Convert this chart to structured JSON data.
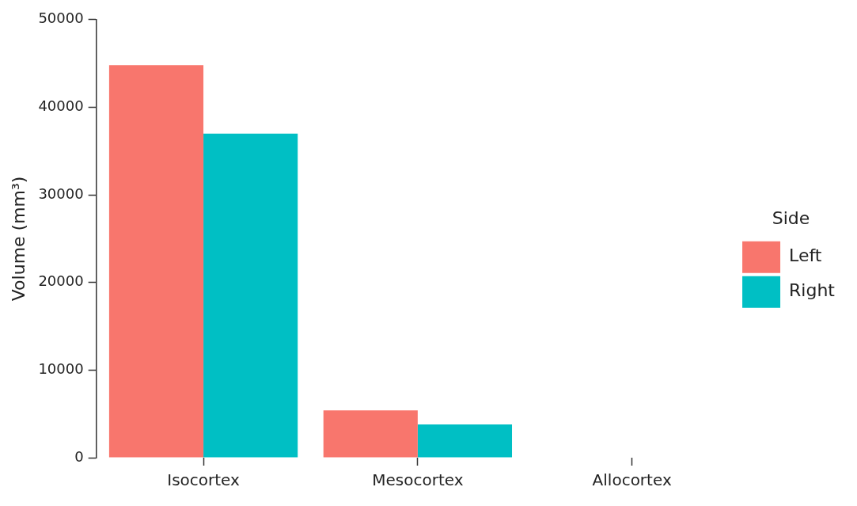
{
  "chart_data": {
    "type": "bar",
    "ylabel": "Volume (mm³)",
    "legend_title": "Side",
    "categories": [
      "Isocortex",
      "Mesocortex",
      "Allocortex"
    ],
    "series": [
      {
        "name": "Left",
        "color": "#f8766d",
        "values": [
          44800,
          5400,
          0
        ]
      },
      {
        "name": "Right",
        "color": "#00bfc4",
        "values": [
          37000,
          3800,
          0
        ]
      }
    ],
    "ylim": [
      0,
      50000
    ],
    "yticks": [
      0,
      10000,
      20000,
      30000,
      40000,
      50000
    ],
    "grid": false,
    "legend": "right"
  }
}
